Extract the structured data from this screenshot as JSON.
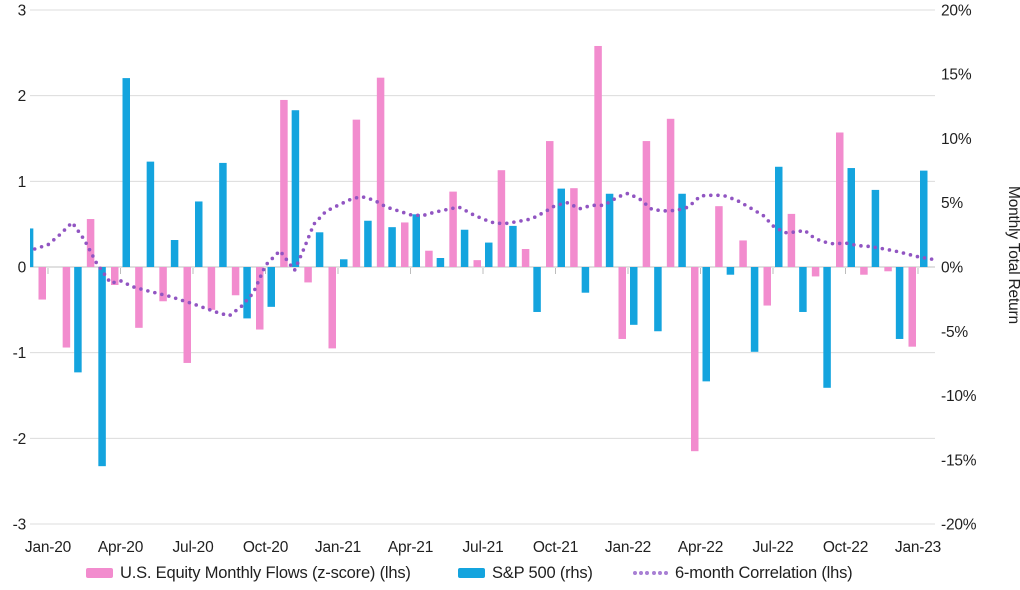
{
  "chart": {
    "left_axis_ticks": [
      "3",
      "2",
      "1",
      "0",
      "-1",
      "-2",
      "-3"
    ],
    "right_axis_ticks": [
      "20%",
      "15%",
      "10%",
      "5%",
      "0%",
      "-5%",
      "-10%",
      "-15%",
      "-20%"
    ],
    "right_axis_title": "Monthly Total Return",
    "x_axis_labels": [
      "Jan-20",
      "Apr-20",
      "Jul-20",
      "Oct-20",
      "Jan-21",
      "Apr-21",
      "Jul-21",
      "Oct-21",
      "Jan-22",
      "Apr-22",
      "Jul-22",
      "Oct-22",
      "Jan-23"
    ],
    "legend": {
      "flows_label": "U.S. Equity Monthly Flows (z-score) (lhs)",
      "sp500_label": "S&P 500 (rhs)",
      "correlation_label": "6-month Correlation (lhs)"
    },
    "colors": {
      "flows": "#f28cce",
      "sp500": "#14a4de",
      "correlation": "#9155c2",
      "correlation_legend": "#a87fd4",
      "axis_text": "#1f1f1f",
      "gridline": "#dcdcdc",
      "zero_line": "#c2c2c2"
    }
  },
  "chart_data": {
    "type": "bar",
    "subtype": "dual-axis combo: two clustered bar series plus dotted correlation line; first month (Dec-19) bar is clipped at the left plot edge",
    "left_axis_range": [
      -3,
      3
    ],
    "right_axis_range": [
      -20,
      20
    ],
    "grid": "horizontal gridlines at every 1.0 of left axis",
    "legend_position": "bottom",
    "months": [
      "Dec-19",
      "Jan-20",
      "Feb-20",
      "Mar-20",
      "Apr-20",
      "May-20",
      "Jun-20",
      "Jul-20",
      "Aug-20",
      "Sep-20",
      "Oct-20",
      "Nov-20",
      "Dec-20",
      "Jan-21",
      "Feb-21",
      "Mar-21",
      "Apr-21",
      "May-21",
      "Jun-21",
      "Jul-21",
      "Aug-21",
      "Sep-21",
      "Oct-21",
      "Nov-21",
      "Dec-21",
      "Jan-22",
      "Feb-22",
      "Mar-22",
      "Apr-22",
      "May-22",
      "Jun-22",
      "Jul-22",
      "Aug-22",
      "Sep-22",
      "Oct-22",
      "Nov-22",
      "Dec-22",
      "Jan-23"
    ],
    "x_tick_month_indices": [
      1,
      4,
      7,
      10,
      13,
      16,
      19,
      22,
      25,
      28,
      31,
      34,
      37
    ],
    "series": [
      {
        "name": "U.S. Equity Monthly Flows (z-score) (lhs)",
        "type": "bar",
        "axis": "left",
        "unit": "z-score",
        "values": [
          null,
          -0.38,
          -0.94,
          0.56,
          -0.21,
          -0.71,
          -0.4,
          -1.12,
          -0.5,
          -0.33,
          -0.73,
          1.95,
          -0.18,
          -0.95,
          1.72,
          2.21,
          0.52,
          0.19,
          0.88,
          0.08,
          1.13,
          0.21,
          1.47,
          0.92,
          2.58,
          -0.84,
          1.47,
          1.73,
          -2.15,
          0.71,
          0.31,
          -0.45,
          0.62,
          -0.11,
          1.57,
          -0.09,
          -0.05,
          -0.93
        ]
      },
      {
        "name": "S&P 500 (rhs)",
        "type": "bar",
        "axis": "right",
        "unit": "%",
        "values": [
          3.0,
          0.0,
          -8.2,
          -15.5,
          14.7,
          8.2,
          2.1,
          5.1,
          8.1,
          -4.0,
          -3.1,
          12.2,
          2.7,
          0.6,
          3.6,
          3.1,
          4.1,
          0.7,
          2.9,
          1.9,
          3.2,
          -3.5,
          6.1,
          -2.0,
          5.7,
          -4.5,
          -5.0,
          5.7,
          -8.9,
          -0.6,
          -6.6,
          7.8,
          -3.5,
          -9.4,
          7.7,
          6.0,
          -5.6,
          7.5
        ]
      },
      {
        "name": "6-month Correlation (lhs)",
        "type": "dotted_line",
        "axis": "left",
        "unit": "correlation (z-axis units)",
        "path_month_value_pairs": [
          [
            0.45,
            0.21
          ],
          [
            1,
            0.26
          ],
          [
            1.5,
            0.38
          ],
          [
            2,
            0.52
          ],
          [
            2.5,
            0.32
          ],
          [
            3,
            0.05
          ],
          [
            3.6,
            -0.19
          ],
          [
            4,
            -0.16
          ],
          [
            4.5,
            -0.23
          ],
          [
            5,
            -0.27
          ],
          [
            6,
            -0.34
          ],
          [
            7,
            -0.43
          ],
          [
            8,
            -0.53
          ],
          [
            8.5,
            -0.57
          ],
          [
            9,
            -0.46
          ],
          [
            9.5,
            -0.3
          ],
          [
            10,
            0.02
          ],
          [
            10.6,
            0.19
          ],
          [
            11.2,
            -0.04
          ],
          [
            11.6,
            0.22
          ],
          [
            12,
            0.5
          ],
          [
            12.5,
            0.65
          ],
          [
            13,
            0.72
          ],
          [
            13.6,
            0.8
          ],
          [
            14,
            0.82
          ],
          [
            14.5,
            0.78
          ],
          [
            15,
            0.7
          ],
          [
            16,
            0.61
          ],
          [
            16.5,
            0.6
          ],
          [
            17,
            0.64
          ],
          [
            18,
            0.7
          ],
          [
            18.6,
            0.61
          ],
          [
            19,
            0.56
          ],
          [
            19.5,
            0.51
          ],
          [
            20,
            0.51
          ],
          [
            21,
            0.56
          ],
          [
            21.6,
            0.65
          ],
          [
            22,
            0.72
          ],
          [
            22.5,
            0.75
          ],
          [
            23,
            0.68
          ],
          [
            23.5,
            0.72
          ],
          [
            24,
            0.72
          ],
          [
            24.6,
            0.82
          ],
          [
            25,
            0.86
          ],
          [
            25.5,
            0.79
          ],
          [
            26,
            0.67
          ],
          [
            26.5,
            0.655
          ],
          [
            27,
            0.66
          ],
          [
            27.5,
            0.7
          ],
          [
            28,
            0.83
          ],
          [
            28.6,
            0.84
          ],
          [
            29,
            0.83
          ],
          [
            29.5,
            0.78
          ],
          [
            30,
            0.7
          ],
          [
            30.6,
            0.6
          ],
          [
            31,
            0.48
          ],
          [
            31.5,
            0.4
          ],
          [
            32,
            0.41
          ],
          [
            32.3,
            0.43
          ],
          [
            32.6,
            0.36
          ],
          [
            33,
            0.3
          ],
          [
            33.5,
            0.27
          ],
          [
            34,
            0.28
          ],
          [
            34.5,
            0.25
          ],
          [
            35,
            0.24
          ],
          [
            36,
            0.19
          ],
          [
            37,
            0.12
          ],
          [
            37.6,
            0.09
          ]
        ]
      }
    ]
  }
}
